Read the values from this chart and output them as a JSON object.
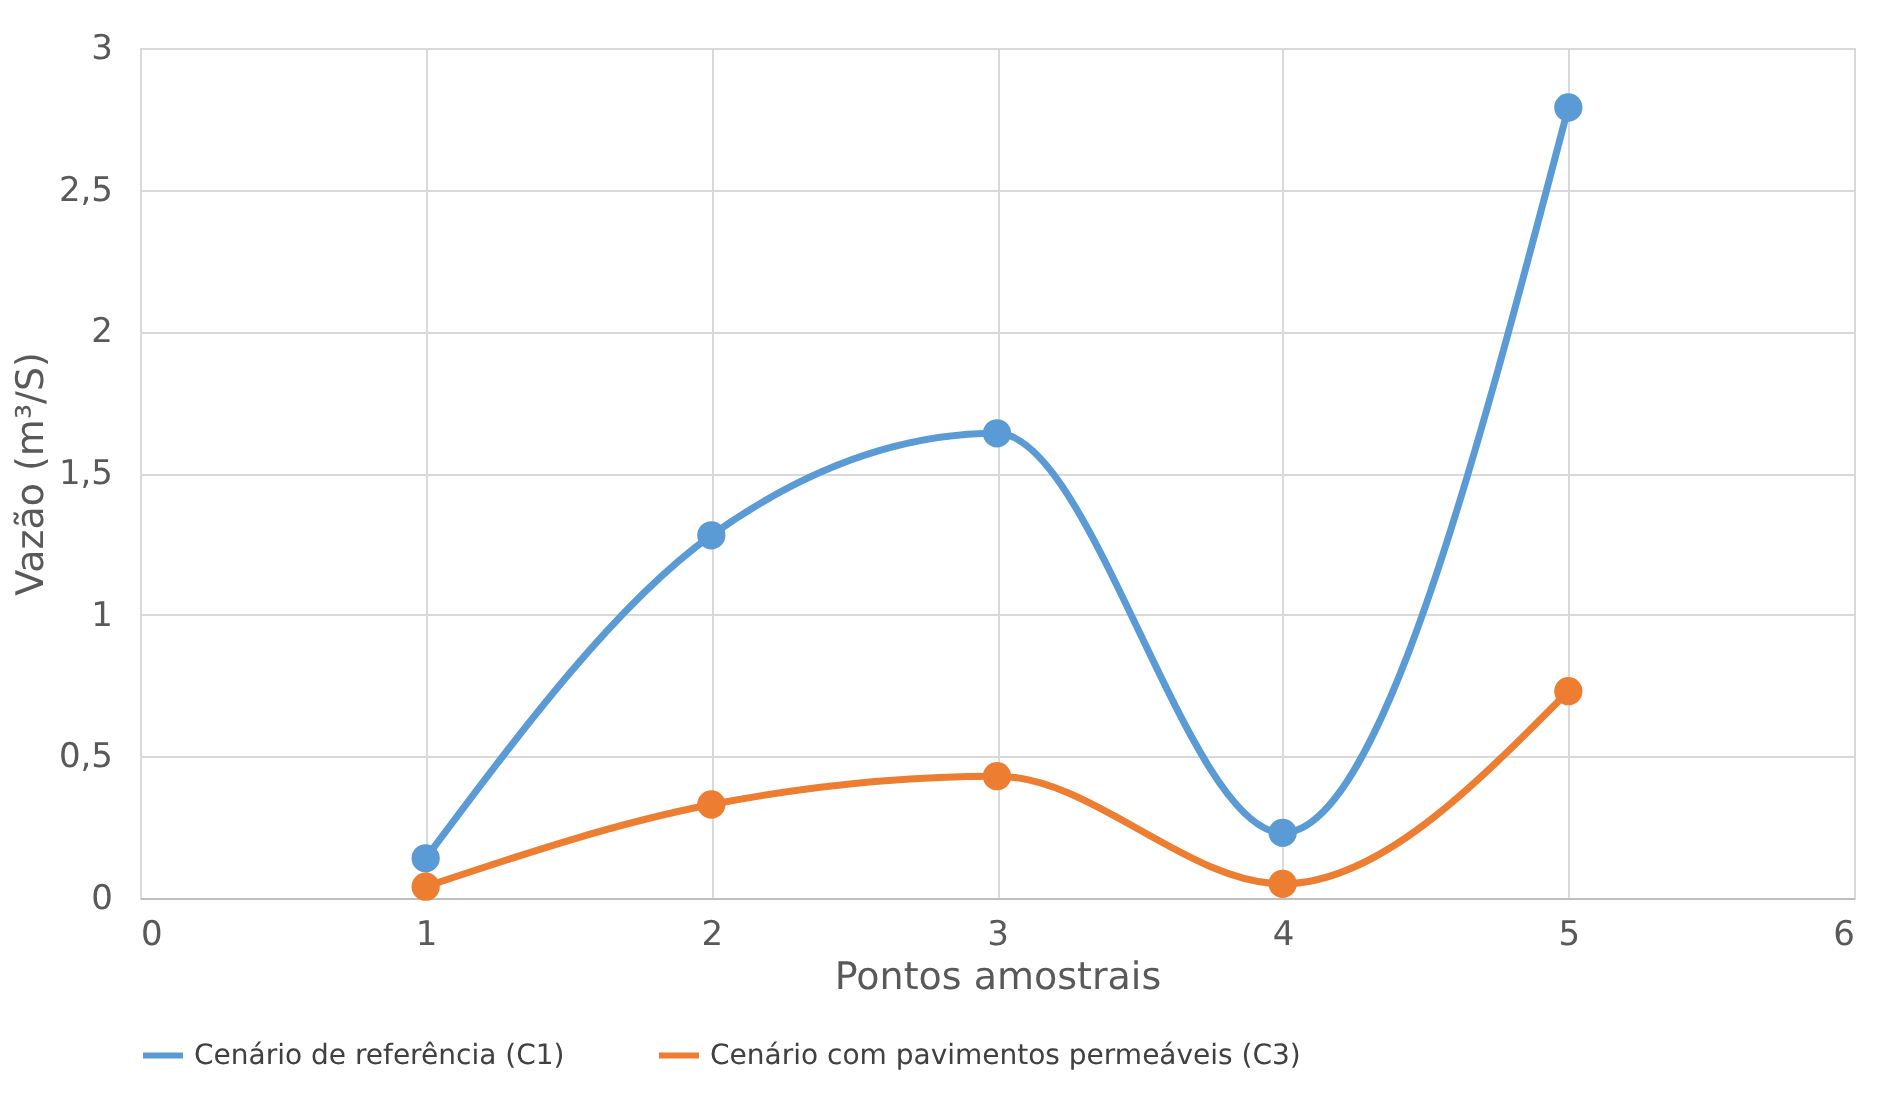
{
  "chart_data": {
    "type": "line",
    "xlabel": "Pontos amostrais",
    "ylabel": "Vazão (m³/S)",
    "xlim": [
      0,
      6
    ],
    "xticks": [
      0,
      1,
      2,
      3,
      4,
      5,
      6
    ],
    "ylim": [
      0,
      3
    ],
    "yticks": [
      0,
      {
        "value": 0.5,
        "label": "0,5"
      },
      1,
      {
        "value": 1.5,
        "label": "1,5"
      },
      2,
      {
        "value": 2.5,
        "label": "2,5"
      },
      3
    ],
    "x": [
      1,
      2,
      3,
      4,
      5
    ],
    "series": [
      {
        "name": "Cenário de referência (C1)",
        "color": "#5b9bd5",
        "values": [
          0.14,
          1.28,
          1.64,
          0.23,
          2.79
        ]
      },
      {
        "name": "Cenário com pavimentos permeáveis (C3)",
        "color": "#ed7d31",
        "values": [
          0.04,
          0.33,
          0.43,
          0.05,
          0.73
        ]
      }
    ],
    "grid": true,
    "legend": "bottom",
    "marker": "circle",
    "line_style": "solid"
  }
}
